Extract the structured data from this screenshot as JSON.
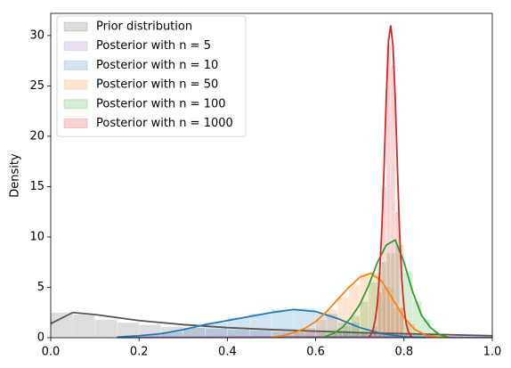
{
  "chart_data": {
    "type": "histogram-kde",
    "ylabel": "Density",
    "xlim": [
      0,
      1
    ],
    "ylim": [
      0,
      32.2
    ],
    "xticks": [
      {
        "value": 0,
        "label": "0.0"
      },
      {
        "value": 0.2,
        "label": "0.2"
      },
      {
        "value": 0.4,
        "label": "0.4"
      },
      {
        "value": 0.6,
        "label": "0.6"
      },
      {
        "value": 0.8,
        "label": "0.8"
      },
      {
        "value": 1,
        "label": "1.0"
      }
    ],
    "yticks": [
      0,
      5,
      10,
      15,
      20,
      25,
      30
    ],
    "legend": "upper left",
    "series": [
      {
        "name": "Prior distribution",
        "color": "#555555",
        "bins": [
          0,
          0.05,
          0.1,
          0.15,
          0.2,
          0.25,
          0.3,
          0.35,
          0.4,
          0.45,
          0.5,
          0.55,
          0.6,
          0.65,
          0.7,
          0.75,
          0.8,
          0.85,
          0.9,
          0.95,
          1
        ],
        "values": [
          2.5,
          2.3,
          1.8,
          1.5,
          1.3,
          1.1,
          1.0,
          0.9,
          0.8,
          0.7,
          0.6,
          0.6,
          0.5,
          0.5,
          0.4,
          0.4,
          0.3,
          0.3,
          0.25,
          0.2
        ],
        "kde_x": [
          0,
          0.05,
          0.1,
          0.2,
          0.3,
          0.4,
          0.5,
          0.6,
          0.7,
          0.8,
          0.9,
          1
        ],
        "kde_y": [
          1.4,
          2.5,
          2.3,
          1.7,
          1.3,
          1.0,
          0.8,
          0.65,
          0.5,
          0.4,
          0.3,
          0.2
        ]
      },
      {
        "name": "Posterior with n = 5",
        "color": "#9467bd",
        "bins": [
          0.1,
          0.5,
          1
        ],
        "values": [
          0.05,
          0.08
        ],
        "kde_x": [
          0.15,
          0.4,
          0.6,
          0.8,
          1
        ],
        "kde_y": [
          0.02,
          0.05,
          0.08,
          0.06,
          0.02
        ]
      },
      {
        "name": "Posterior with n = 10",
        "color": "#1f77b4",
        "bins": [
          0.15,
          0.2,
          0.25,
          0.3,
          0.35,
          0.4,
          0.45,
          0.5,
          0.55,
          0.6,
          0.65,
          0.7,
          0.75,
          0.8,
          0.85
        ],
        "values": [
          0.1,
          0.3,
          0.6,
          1.0,
          1.5,
          2.0,
          2.4,
          2.8,
          2.9,
          2.4,
          1.5,
          0.6,
          0.2,
          0.05
        ],
        "kde_x": [
          0.15,
          0.2,
          0.25,
          0.3,
          0.35,
          0.4,
          0.45,
          0.5,
          0.55,
          0.6,
          0.65,
          0.7,
          0.75,
          0.8,
          0.85
        ],
        "kde_y": [
          0.05,
          0.2,
          0.4,
          0.8,
          1.3,
          1.7,
          2.1,
          2.5,
          2.8,
          2.6,
          1.9,
          1.0,
          0.4,
          0.1,
          0.02
        ]
      },
      {
        "name": "Posterior with n = 50",
        "color": "#ff7f0e",
        "bins": [
          0.5,
          0.525,
          0.55,
          0.575,
          0.6,
          0.625,
          0.65,
          0.675,
          0.7,
          0.725,
          0.75,
          0.775,
          0.8,
          0.825,
          0.85,
          0.875,
          0.9
        ],
        "values": [
          0.1,
          0.3,
          0.6,
          1.0,
          1.8,
          2.8,
          4.0,
          5.2,
          6.4,
          6.5,
          5.0,
          3.0,
          1.4,
          0.5,
          0.15,
          0.05
        ],
        "kde_x": [
          0.5,
          0.525,
          0.55,
          0.575,
          0.6,
          0.625,
          0.65,
          0.675,
          0.7,
          0.725,
          0.75,
          0.775,
          0.8,
          0.825,
          0.85,
          0.875,
          0.9
        ],
        "kde_y": [
          0.05,
          0.2,
          0.5,
          0.9,
          1.6,
          2.6,
          3.8,
          5.0,
          6.0,
          6.4,
          5.6,
          3.8,
          2.0,
          0.8,
          0.25,
          0.08,
          0.02
        ]
      },
      {
        "name": "Posterior with n = 100",
        "color": "#2ca02c",
        "bins": [
          0.62,
          0.64,
          0.66,
          0.68,
          0.7,
          0.72,
          0.74,
          0.76,
          0.78,
          0.8,
          0.82,
          0.84,
          0.86,
          0.88,
          0.9
        ],
        "values": [
          0.2,
          0.6,
          1.2,
          2.2,
          3.6,
          5.5,
          7.5,
          8.4,
          9.2,
          6.5,
          3.6,
          1.8,
          0.7,
          0.2
        ],
        "kde_x": [
          0.62,
          0.64,
          0.66,
          0.68,
          0.7,
          0.72,
          0.74,
          0.76,
          0.78,
          0.8,
          0.82,
          0.84,
          0.86,
          0.88,
          0.9
        ],
        "kde_y": [
          0.1,
          0.4,
          1.0,
          2.0,
          3.3,
          5.2,
          7.5,
          9.2,
          9.7,
          7.5,
          4.5,
          2.2,
          1.0,
          0.3,
          0.05
        ]
      },
      {
        "name": "Posterior with n = 1000",
        "color": "#d62728",
        "bins": [
          0.72,
          0.73,
          0.74,
          0.75,
          0.76,
          0.77,
          0.78,
          0.79,
          0.8,
          0.81,
          0.82
        ],
        "values": [
          0.3,
          1.2,
          4.5,
          15,
          29,
          27,
          12.5,
          3,
          0.5,
          0.1
        ],
        "kde_x": [
          0.72,
          0.725,
          0.73,
          0.735,
          0.74,
          0.745,
          0.75,
          0.755,
          0.76,
          0.765,
          0.77,
          0.775,
          0.78,
          0.785,
          0.79,
          0.795,
          0.8,
          0.805,
          0.81,
          0.815,
          0.82
        ],
        "kde_y": [
          0.1,
          0.3,
          0.8,
          1.8,
          3.5,
          6.5,
          11,
          17,
          24,
          29.5,
          31,
          29,
          24,
          17,
          10.5,
          5.8,
          3,
          1.4,
          0.6,
          0.2,
          0.05
        ]
      }
    ]
  }
}
